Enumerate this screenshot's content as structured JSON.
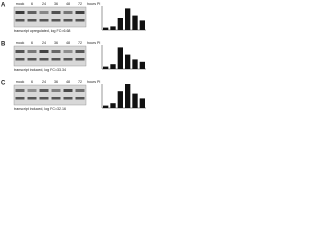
{
  "panels": [
    {
      "label": "A",
      "lanes": [
        "mock",
        "6",
        "24",
        "36",
        "48",
        "72",
        "hours PI"
      ],
      "caption": "transcript upregulated, log FC=6.68",
      "bars": [
        0.1,
        0.15,
        0.5,
        0.9,
        0.6,
        0.4
      ]
    },
    {
      "label": "B",
      "lanes": [
        "mock",
        "6",
        "24",
        "36",
        "48",
        "72",
        "hours PI"
      ],
      "caption": "transcript induced, log FC=33.34",
      "bars": [
        0.1,
        0.2,
        0.9,
        0.6,
        0.4,
        0.3
      ]
    },
    {
      "label": "C",
      "lanes": [
        "mock",
        "6",
        "24",
        "36",
        "48",
        "72",
        "hours PI"
      ],
      "caption": "transcript induced, log FC=32.16",
      "bars": [
        0.1,
        0.2,
        0.7,
        1.0,
        0.6,
        0.4
      ]
    }
  ]
}
